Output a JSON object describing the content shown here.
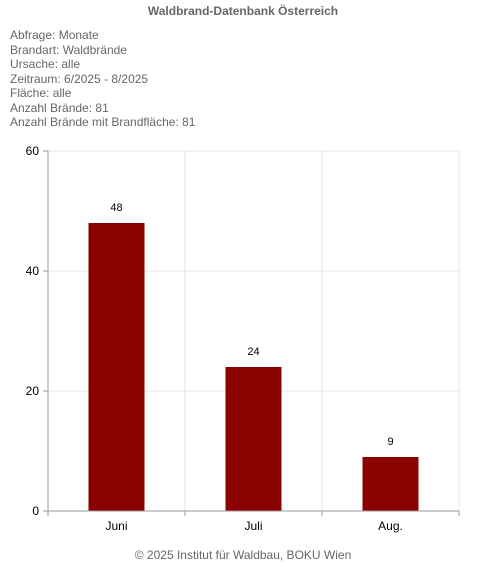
{
  "title": "Waldbrand-Datenbank Österreich",
  "info": [
    {
      "label": "Abfrage",
      "value": "Monate"
    },
    {
      "label": "Brandart",
      "value": "Waldbrände"
    },
    {
      "label": "Ursache",
      "value": "alle"
    },
    {
      "label": "Zeitraum",
      "value": "6/2025 - 8/2025"
    },
    {
      "label": "Fläche",
      "value": "alle"
    },
    {
      "label": "Anzahl Brände",
      "value": "81"
    },
    {
      "label": "Anzahl Brände mit Brandfläche",
      "value": "81"
    }
  ],
  "footer": "© 2025 Institut für Waldbau, BOKU Wien",
  "colors": {
    "bar": "#8b0000",
    "grid": "#e6e6e6",
    "axis": "#999999",
    "text": "#666666",
    "tick_label": "#000000"
  },
  "chart_data": {
    "type": "bar",
    "categories": [
      "Juni",
      "Juli",
      "Aug."
    ],
    "values": [
      48,
      24,
      9
    ],
    "data_labels": [
      "48",
      "24",
      "9"
    ],
    "ylim": [
      0,
      60
    ],
    "yticks": [
      0,
      20,
      40,
      60
    ],
    "xlabel": "",
    "ylabel": "",
    "grid": true,
    "legend": "none"
  }
}
